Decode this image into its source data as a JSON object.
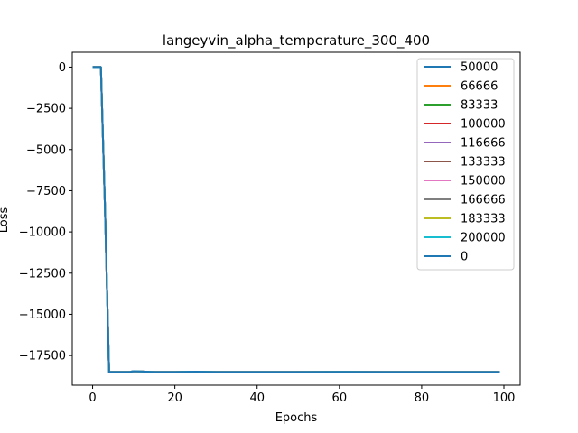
{
  "chart_data": {
    "type": "line",
    "title": "langeyvin_alpha_temperature_300_400",
    "xlabel": "Epochs",
    "ylabel": "Loss",
    "xlim": [
      -4.95,
      103.95
    ],
    "ylim": [
      -19300,
      900
    ],
    "xticks": [
      0,
      20,
      40,
      60,
      80,
      100
    ],
    "yticks": [
      0,
      -2500,
      -5000,
      -7500,
      -10000,
      -12500,
      -15000,
      -17500
    ],
    "ytick_labels": [
      "0",
      "−2500",
      "−5000",
      "−7500",
      "−10000",
      "−12500",
      "−15000",
      "−17500"
    ],
    "grid": false,
    "legend_position": "upper right",
    "x": [
      0,
      1,
      2,
      3,
      4,
      5,
      6,
      7,
      8,
      9,
      10,
      15,
      20,
      25,
      30,
      40,
      50,
      60,
      70,
      80,
      90,
      99
    ],
    "series": [
      {
        "name": "50000",
        "color": "#1f77b4"
      },
      {
        "name": "66666",
        "color": "#ff7f0e"
      },
      {
        "name": "83333",
        "color": "#2ca02c"
      },
      {
        "name": "100000",
        "color": "#d62728"
      },
      {
        "name": "116666",
        "color": "#9467bd"
      },
      {
        "name": "133333",
        "color": "#8c564b"
      },
      {
        "name": "150000",
        "color": "#e377c2"
      },
      {
        "name": "166666",
        "color": "#7f7f7f"
      },
      {
        "name": "183333",
        "color": "#bcbd22"
      },
      {
        "name": "200000",
        "color": "#17becf"
      },
      {
        "name": "0",
        "color": "#1f77b4"
      }
    ],
    "values": [
      0,
      0,
      0,
      -8500,
      -18500,
      -18500,
      -18500,
      -18500,
      -18500,
      -18500,
      -18450,
      -18500,
      -18500,
      -18480,
      -18500,
      -18500,
      -18500,
      -18490,
      -18500,
      -18500,
      -18500,
      -18500
    ]
  }
}
